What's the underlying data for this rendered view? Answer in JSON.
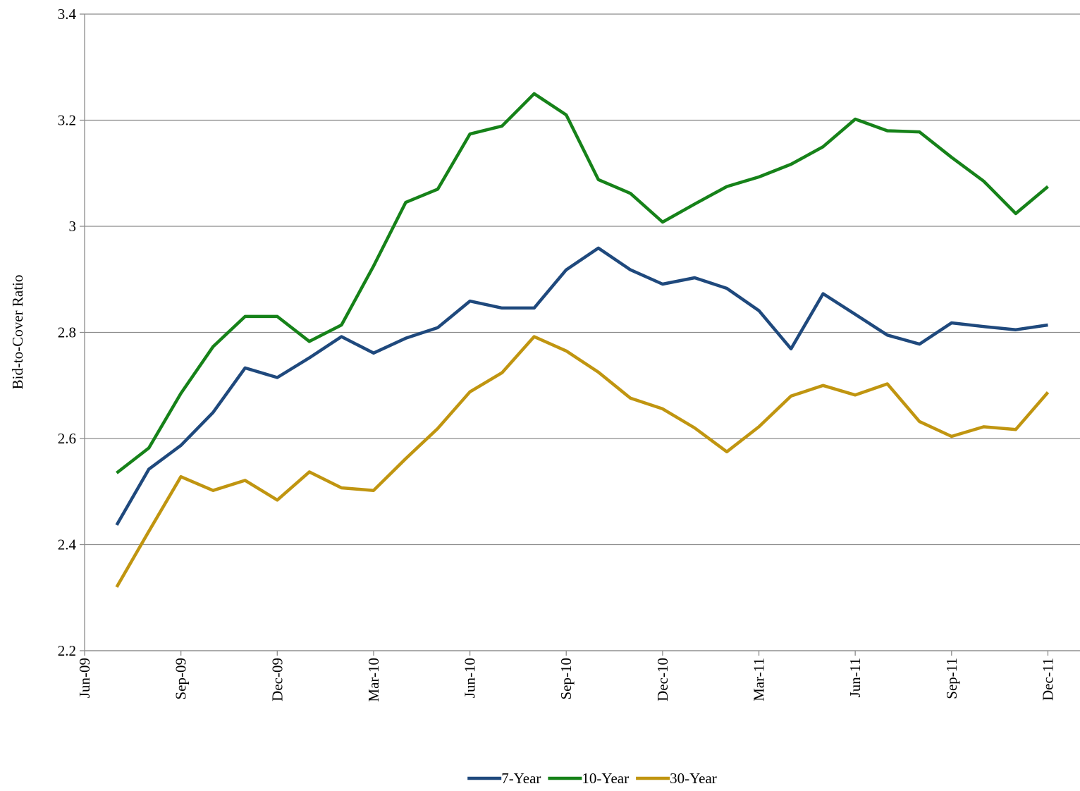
{
  "chart_data": {
    "type": "line",
    "y_label": "Bid-to-Cover Ratio",
    "x": [
      "Jul-09",
      "Aug-09",
      "Sep-09",
      "Oct-09",
      "Nov-09",
      "Dec-09",
      "Jan-10",
      "Feb-10",
      "Mar-10",
      "Apr-10",
      "May-10",
      "Jun-10",
      "Jul-10",
      "Aug-10",
      "Sep-10",
      "Oct-10",
      "Nov-10",
      "Dec-10",
      "Jan-11",
      "Feb-11",
      "Mar-11",
      "Apr-11",
      "May-11",
      "Jun-11",
      "Jul-11",
      "Aug-11",
      "Sep-11",
      "Oct-11",
      "Nov-11",
      "Dec-11"
    ],
    "series": [
      {
        "name": "7-Year",
        "color": "#1f497d",
        "values": [
          2.437,
          2.542,
          2.587,
          2.649,
          2.733,
          2.715,
          2.752,
          2.792,
          2.761,
          2.789,
          2.809,
          2.859,
          2.846,
          2.846,
          2.918,
          2.959,
          2.918,
          2.891,
          2.903,
          2.883,
          2.841,
          2.769,
          2.873,
          2.834,
          2.795,
          2.778,
          2.818,
          2.811,
          2.805,
          2.814
        ]
      },
      {
        "name": "10-Year",
        "color": "#168219",
        "values": [
          2.535,
          2.582,
          2.685,
          2.773,
          2.83,
          2.83,
          2.783,
          2.814,
          2.925,
          3.045,
          3.07,
          3.174,
          3.189,
          3.25,
          3.21,
          3.088,
          3.062,
          3.008,
          3.042,
          3.075,
          3.093,
          3.117,
          3.15,
          3.202,
          3.18,
          3.178,
          3.13,
          3.085,
          3.024,
          3.075
        ]
      },
      {
        "name": "30-Year",
        "color": "#c09510",
        "values": [
          2.32,
          2.425,
          2.528,
          2.502,
          2.521,
          2.484,
          2.537,
          2.507,
          2.502,
          2.562,
          2.619,
          2.688,
          2.724,
          2.792,
          2.765,
          2.725,
          2.676,
          2.656,
          2.62,
          2.575,
          2.622,
          2.68,
          2.7,
          2.682,
          2.703,
          2.632,
          2.604,
          2.622,
          2.617,
          2.687
        ]
      }
    ],
    "xlim": [
      "Jun-09",
      "Jan-12"
    ],
    "xticks": [
      "Jun-09",
      "Sep-09",
      "Dec-09",
      "Mar-10",
      "Jun-10",
      "Sep-10",
      "Dec-10",
      "Mar-11",
      "Jun-11",
      "Sep-11",
      "Dec-11"
    ],
    "ylim": [
      2.2,
      3.4
    ],
    "yticks": [
      2.2,
      2.4,
      2.6,
      2.8,
      3,
      3.2,
      3.4
    ],
    "grid": true,
    "legend": "bottom"
  }
}
